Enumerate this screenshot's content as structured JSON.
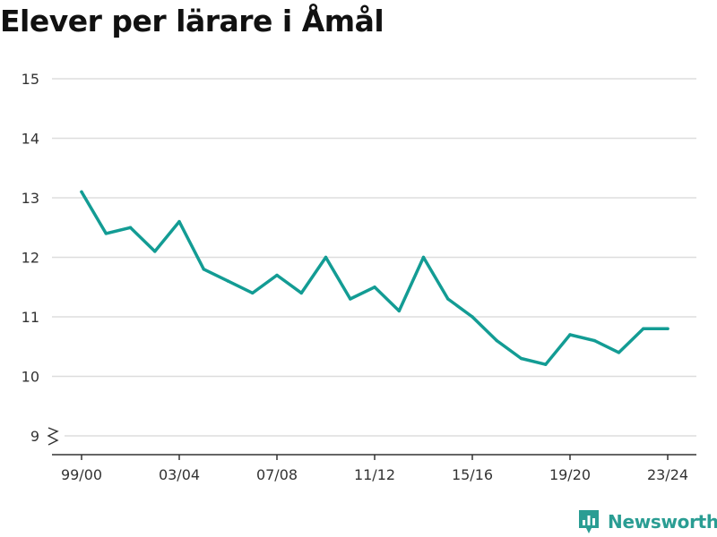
{
  "colors": {
    "line": "#139c94",
    "grid": "#dddddd",
    "axis": "#333333",
    "brand": "#2a9d93"
  },
  "brand": {
    "name": "Newsworthy",
    "icon": "bar-chart-icon"
  },
  "chart_data": {
    "type": "line",
    "title": "Elever per lärare i Åmål",
    "xlabel": "",
    "ylabel": "",
    "ylim": [
      9,
      15
    ],
    "y_axis_break": true,
    "grid": true,
    "y_ticks": [
      9,
      10,
      11,
      12,
      13,
      14,
      15
    ],
    "x_tick_labels": [
      "99/00",
      "03/04",
      "07/08",
      "11/12",
      "15/16",
      "19/20",
      "23/24"
    ],
    "categories": [
      "99/00",
      "00/01",
      "01/02",
      "02/03",
      "03/04",
      "04/05",
      "05/06",
      "06/07",
      "07/08",
      "08/09",
      "09/10",
      "10/11",
      "11/12",
      "12/13",
      "13/14",
      "14/15",
      "15/16",
      "16/17",
      "17/18",
      "18/19",
      "19/20",
      "20/21",
      "21/22",
      "22/23",
      "23/24"
    ],
    "series": [
      {
        "values": [
          13.1,
          12.4,
          12.5,
          12.1,
          12.6,
          11.8,
          11.6,
          11.4,
          11.7,
          11.4,
          12.0,
          11.3,
          11.5,
          11.1,
          12.0,
          11.3,
          11.0,
          10.6,
          10.3,
          10.2,
          10.7,
          10.6,
          10.4,
          10.8,
          10.8
        ]
      }
    ]
  }
}
